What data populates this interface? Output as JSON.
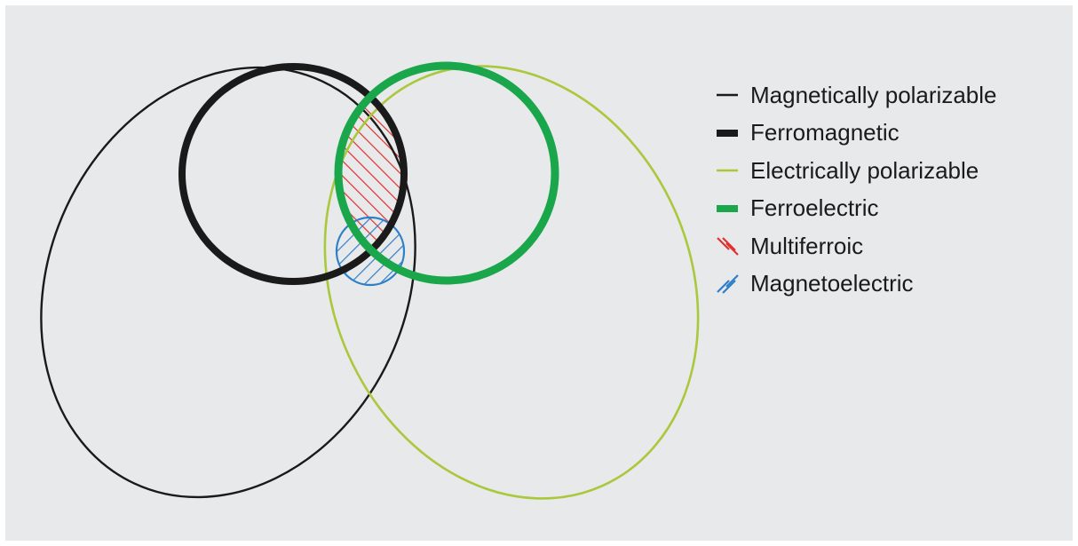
{
  "colors": {
    "magnetically_polarizable": "#1a1a1a",
    "ferromagnetic": "#1a1a1a",
    "electrically_polarizable": "#a9c83c",
    "ferroelectric": "#1aa64a",
    "multiferroic": "#e0312f",
    "magnetoelectric": "#2d7fc9",
    "background": "#e8e9ea"
  },
  "legend": [
    {
      "key": "magnetically_polarizable",
      "label": "Magnetically polarizable",
      "icon": "thin-line-icon"
    },
    {
      "key": "ferromagnetic",
      "label": "Ferromagnetic",
      "icon": "thick-line-icon"
    },
    {
      "key": "electrically_polarizable",
      "label": "Electrically polarizable",
      "icon": "thin-line-icon"
    },
    {
      "key": "ferroelectric",
      "label": "Ferroelectric",
      "icon": "thick-line-icon"
    },
    {
      "key": "multiferroic",
      "label": "Multiferroic",
      "icon": "backslash-hatch-icon"
    },
    {
      "key": "magnetoelectric",
      "label": "Magnetoelectric",
      "icon": "slash-hatch-icon"
    }
  ]
}
